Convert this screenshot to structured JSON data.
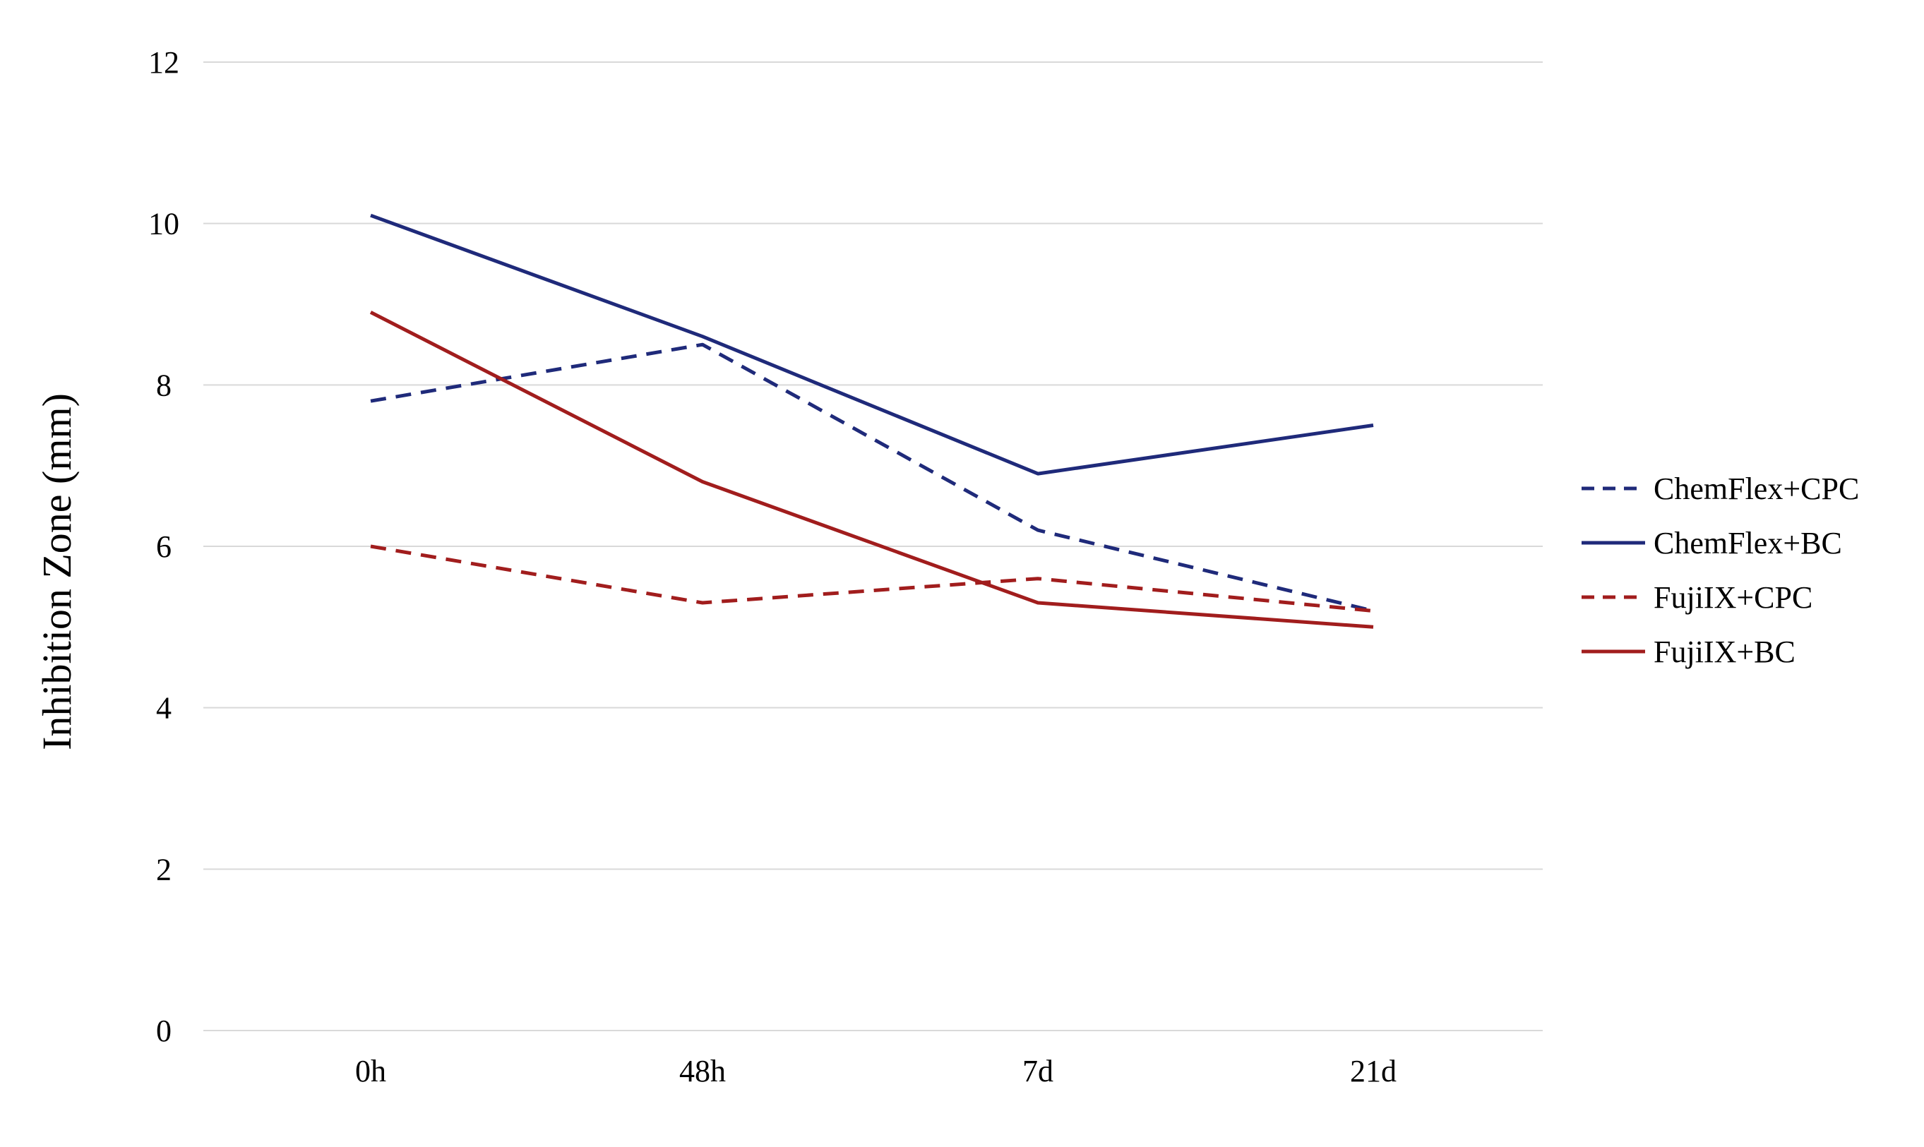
{
  "chart_data": {
    "type": "line",
    "title": "",
    "xlabel": "",
    "ylabel": "Inhibition Zone (mm)",
    "categories": [
      "0h",
      "48h",
      "7d",
      "21d"
    ],
    "ylim": [
      0,
      12
    ],
    "yticks": [
      0,
      2,
      4,
      6,
      8,
      10,
      12
    ],
    "grid": true,
    "legend_position": "right",
    "series": [
      {
        "name": "ChemFlex+CPC",
        "values": [
          7.8,
          8.5,
          6.2,
          5.2
        ],
        "color": "#1f2a7a",
        "dash": "dashed"
      },
      {
        "name": "ChemFlex+BC",
        "values": [
          10.1,
          8.6,
          6.9,
          7.5
        ],
        "color": "#1f2a7a",
        "dash": "solid"
      },
      {
        "name": "FujiIX+CPC",
        "values": [
          6.0,
          5.3,
          5.6,
          5.2
        ],
        "color": "#a11d1d",
        "dash": "dashed"
      },
      {
        "name": "FujiIX+BC",
        "values": [
          8.9,
          6.8,
          5.3,
          5.0
        ],
        "color": "#a11d1d",
        "dash": "solid"
      }
    ]
  }
}
